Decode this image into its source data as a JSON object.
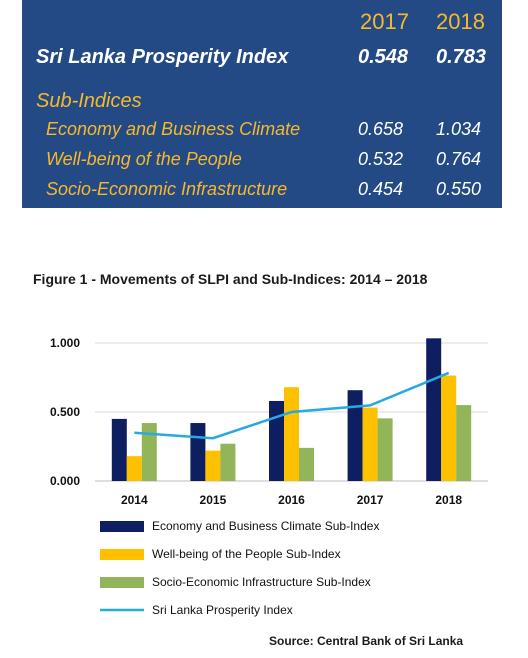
{
  "table": {
    "years": [
      "2017",
      "2018"
    ],
    "main": {
      "label": "Sri Lanka Prosperity Index",
      "values": [
        "0.548",
        "0.783"
      ]
    },
    "sub_heading": "Sub-Indices",
    "rows": [
      {
        "label": "Economy and Business Climate",
        "values": [
          "0.658",
          "1.034"
        ]
      },
      {
        "label": "Well-being of the People",
        "values": [
          "0.532",
          "0.764"
        ]
      },
      {
        "label": "Socio-Economic Infrastructure",
        "values": [
          "0.454",
          "0.550"
        ]
      }
    ]
  },
  "caption": "Figure 1 - Movements of SLPI and Sub-Indices: 2014 – 2018",
  "source": "Source: Central Bank of Sri Lanka",
  "colors": {
    "panel": "#244a86",
    "gold": "#f6b92c",
    "economy": "#0e1f61",
    "wellbeing": "#ffc000",
    "infrastructure": "#92b55a",
    "slpi": "#27a9e1"
  },
  "chart_data": {
    "type": "bar",
    "categories": [
      "2014",
      "2015",
      "2016",
      "2017",
      "2018"
    ],
    "y_ticks": [
      "0.000",
      "0.500",
      "1.000"
    ],
    "ylim": [
      0,
      1.0
    ],
    "grid": true,
    "legend_position": "bottom",
    "series": [
      {
        "name": "Economy and Business Climate Sub-Index",
        "kind": "bar",
        "color": "#0e1f61",
        "values": [
          0.45,
          0.42,
          0.58,
          0.658,
          1.034
        ]
      },
      {
        "name": "Well-being of the People Sub-Index",
        "kind": "bar",
        "color": "#ffc000",
        "values": [
          0.18,
          0.22,
          0.68,
          0.532,
          0.764
        ]
      },
      {
        "name": "Socio-Economic Infrastructure Sub-Index",
        "kind": "bar",
        "color": "#92b55a",
        "values": [
          0.42,
          0.27,
          0.24,
          0.454,
          0.55
        ]
      },
      {
        "name": "Sri Lanka Prosperity Index",
        "kind": "line",
        "color": "#27a9e1",
        "values": [
          0.35,
          0.31,
          0.5,
          0.548,
          0.783
        ]
      }
    ]
  }
}
